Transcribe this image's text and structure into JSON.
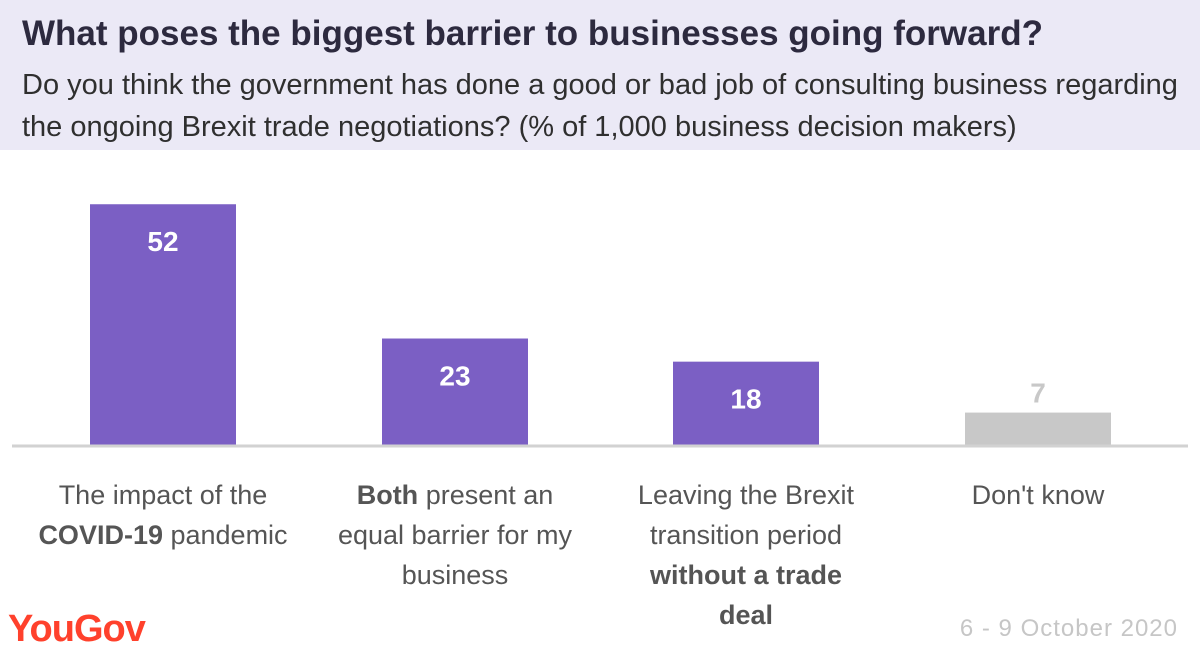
{
  "header": {
    "title": "What poses the biggest barrier to businesses going forward?",
    "subtitle": "Do you think the government has done a good or bad job of consulting business regarding the ongoing Brexit trade negotiations? (% of 1,000 business decision makers)"
  },
  "chart_data": {
    "type": "bar",
    "title": "What poses the biggest barrier to businesses going forward?",
    "categories": [
      "The impact of the COVID-19 pandemic",
      "Both present an equal barrier for my business",
      "Leaving the Brexit transition period without a trade deal",
      "Don't know"
    ],
    "values": [
      52,
      23,
      18,
      7
    ],
    "ylim": [
      0,
      55
    ],
    "colors": [
      "#7b5fc4",
      "#7b5fc4",
      "#7b5fc4",
      "#c8c8c8"
    ],
    "grid": false,
    "legend": "none"
  },
  "labels": [
    {
      "pre": "The impact of the ",
      "bold": "COVID-19",
      "post": " pandemic"
    },
    {
      "pre": "",
      "bold": "Both",
      "post": " present an equal barrier for my business"
    },
    {
      "pre": "Leaving the Brexit transition period ",
      "bold": "without a trade deal",
      "post": ""
    },
    {
      "pre": "Don't know",
      "bold": "",
      "post": ""
    }
  ],
  "footer": {
    "logo": "YouGov",
    "dates": "6 - 9 October 2020"
  },
  "colors": {
    "accent": "#7b5fc4",
    "neutral": "#c8c8c8",
    "header_bg": "#ebe9f6",
    "brand": "#ff412c"
  }
}
